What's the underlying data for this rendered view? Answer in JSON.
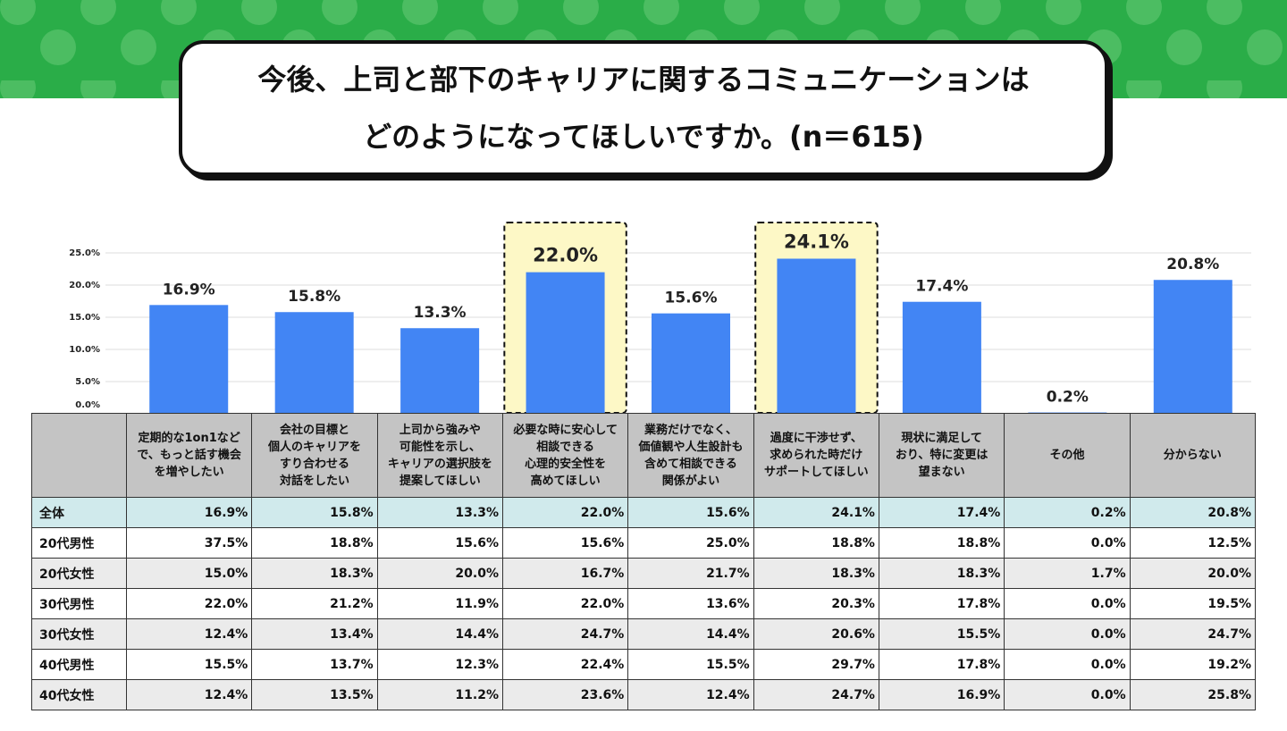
{
  "header": {
    "title_lines": [
      "今後、上司と部下のキャリアに関するコミュニケーションは",
      "どのようになってほしいですか。(n＝615)"
    ]
  },
  "chart_data": {
    "type": "bar",
    "categories": [
      "定期的な1on1など\nで、もっと話す機会\nを増やしたい",
      "会社の目標と\n個人のキャリアを\nすり合わせる\n対話をしたい",
      "上司から強みや\n可能性を示し、\nキャリアの選択肢を\n提案してほしい",
      "必要な時に安心して\n相談できる\n心理的安全性を\n高めてほしい",
      "業務だけでなく、\n価値観や人生設計も\n含めて相談できる\n関係がよい",
      "過度に干渉せず、\n求められた時だけ\nサポートしてほしい",
      "現状に満足して\nおり、特に変更は\n望まない",
      "その他",
      "分からない"
    ],
    "values": [
      16.9,
      15.8,
      13.3,
      22.0,
      15.6,
      24.1,
      17.4,
      0.2,
      20.8
    ],
    "value_labels": [
      "16.9%",
      "15.8%",
      "13.3%",
      "22.0%",
      "15.6%",
      "24.1%",
      "17.4%",
      "0.2%",
      "20.8%"
    ],
    "color": "#4285f4",
    "ylim": [
      0,
      25
    ],
    "yticks": [
      {
        "value": 0,
        "label": "0.0%"
      },
      {
        "value": 5,
        "label": "5.0%"
      },
      {
        "value": 10,
        "label": "10.0%"
      },
      {
        "value": 15,
        "label": "15.0%"
      },
      {
        "value": 20,
        "label": "20.0%"
      },
      {
        "value": 25,
        "label": "25.0%"
      }
    ],
    "grid": true,
    "highlight": [
      3,
      5
    ]
  },
  "table": {
    "total_label": "全体",
    "rows": [
      [
        "20代男性",
        "37.5%",
        "18.8%",
        "15.6%",
        "15.6%",
        "25.0%",
        "18.8%",
        "18.8%",
        "0.0%",
        "12.5%"
      ],
      [
        "20代女性",
        "15.0%",
        "18.3%",
        "20.0%",
        "16.7%",
        "21.7%",
        "18.3%",
        "18.3%",
        "1.7%",
        "20.0%"
      ],
      [
        "30代男性",
        "22.0%",
        "21.2%",
        "11.9%",
        "22.0%",
        "13.6%",
        "20.3%",
        "17.8%",
        "0.0%",
        "19.5%"
      ],
      [
        "30代女性",
        "12.4%",
        "13.4%",
        "14.4%",
        "24.7%",
        "14.4%",
        "20.6%",
        "15.5%",
        "0.0%",
        "24.7%"
      ],
      [
        "40代男性",
        "15.5%",
        "13.7%",
        "12.3%",
        "22.4%",
        "15.5%",
        "29.7%",
        "17.8%",
        "0.0%",
        "19.2%"
      ],
      [
        "40代女性",
        "12.4%",
        "13.5%",
        "11.2%",
        "23.6%",
        "12.4%",
        "24.7%",
        "16.9%",
        "0.0%",
        "25.8%"
      ]
    ]
  }
}
